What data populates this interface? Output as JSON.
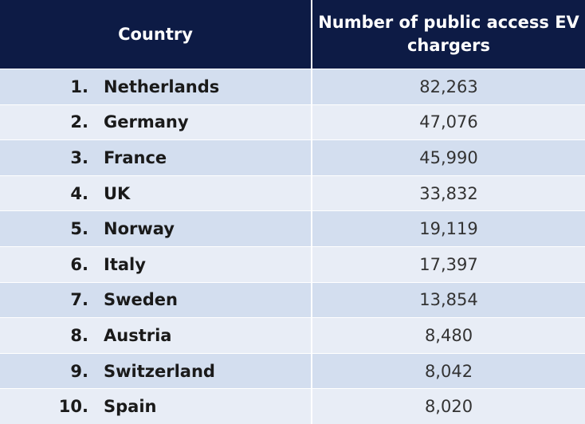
{
  "chart_data": {
    "type": "table",
    "columns": [
      "Country",
      "Number of public access EV chargers"
    ],
    "rows": [
      {
        "rank": "1.",
        "country": "Netherlands",
        "value": "82,263"
      },
      {
        "rank": "2.",
        "country": "Germany",
        "value": "47,076"
      },
      {
        "rank": "3.",
        "country": "France",
        "value": "45,990"
      },
      {
        "rank": "4.",
        "country": "UK",
        "value": "33,832"
      },
      {
        "rank": "5.",
        "country": "Norway",
        "value": "19,119"
      },
      {
        "rank": "6.",
        "country": "Italy",
        "value": "17,397"
      },
      {
        "rank": "7.",
        "country": "Sweden",
        "value": "13,854"
      },
      {
        "rank": "8.",
        "country": "Austria",
        "value": "8,480"
      },
      {
        "rank": "9.",
        "country": "Switzerland",
        "value": "8,042"
      },
      {
        "rank": "10.",
        "country": "Spain",
        "value": "8,020"
      }
    ]
  },
  "colors": {
    "header_bg": "#0d1b45",
    "row_odd": "#d3deef",
    "row_even": "#e8edf6"
  }
}
